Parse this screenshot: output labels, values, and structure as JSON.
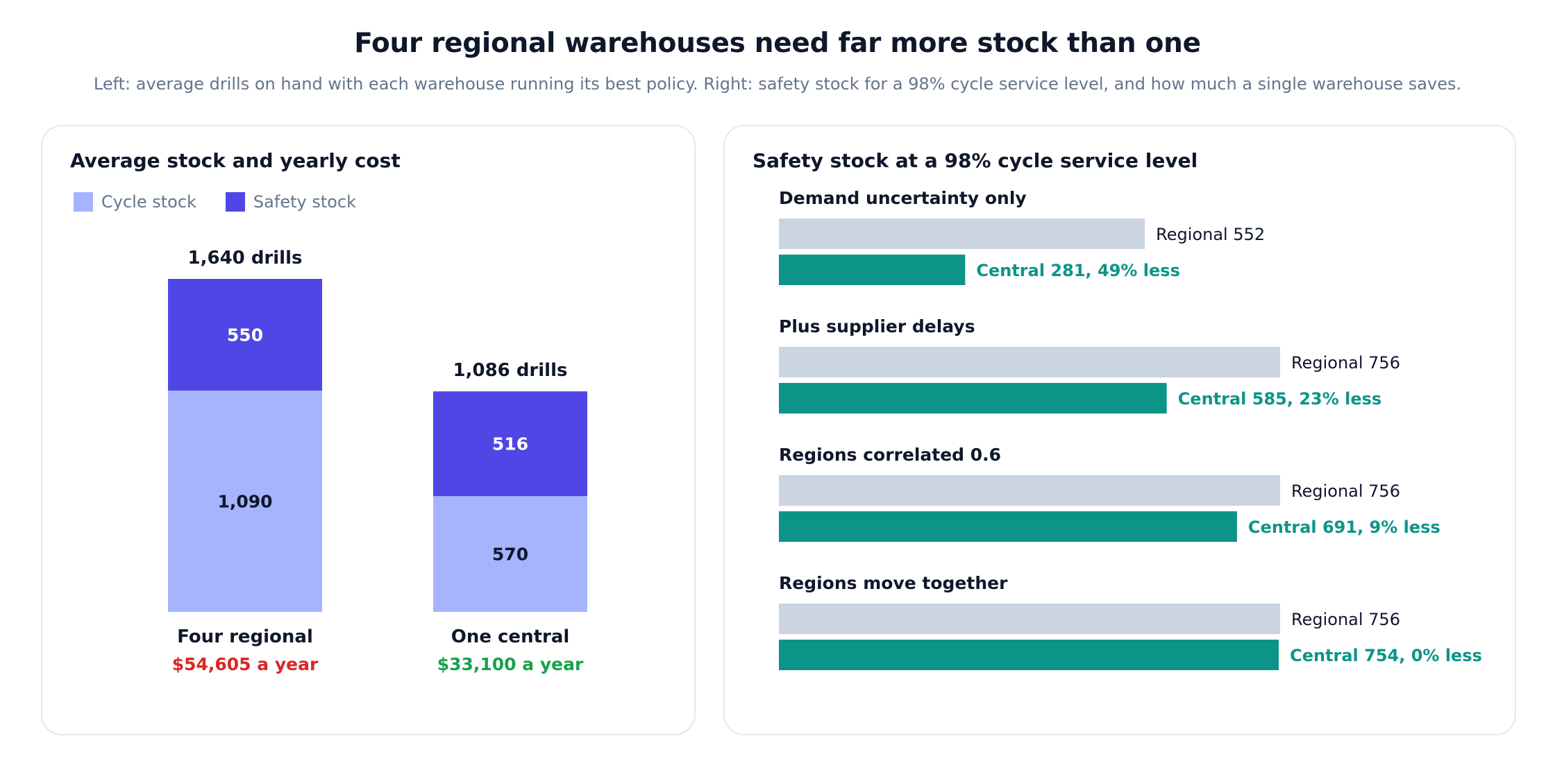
{
  "header": {
    "title": "Four regional warehouses need far more stock than one",
    "subtitle": "Left: average drills on hand with each warehouse running its best policy. Right: safety stock for a 98% cycle service level, and how much a single warehouse saves."
  },
  "colors": {
    "cycle": "#a5b4fc",
    "safety": "#4f46e5",
    "regional_bar": "#cbd5e1",
    "central_bar": "#0d9488",
    "cost_high": "#dc2626",
    "cost_low": "#16a34a"
  },
  "chart_data": [
    {
      "type": "bar",
      "stacked": true,
      "title": "Average stock and yearly cost",
      "legend": [
        "Cycle stock",
        "Safety stock"
      ],
      "legend_position": "top-left",
      "categories": [
        "Four regional",
        "One central"
      ],
      "series": [
        {
          "name": "Cycle stock",
          "values": [
            1090,
            570
          ],
          "labels": [
            "1,090",
            "570"
          ]
        },
        {
          "name": "Safety stock",
          "values": [
            550,
            516
          ],
          "labels": [
            "550",
            "516"
          ]
        }
      ],
      "totals": [
        "1,640 drills",
        "1,086 drills"
      ],
      "costs": [
        "$54,605 a year",
        "$33,100 a year"
      ],
      "ylim": [
        0,
        1640
      ],
      "grid": false
    },
    {
      "type": "bar",
      "orientation": "horizontal",
      "title": "Safety stock at a 98% cycle service level",
      "xlim": [
        0,
        756
      ],
      "grid": false,
      "groups": [
        {
          "name": "Demand uncertainty only",
          "regional": 552,
          "central": 281,
          "regional_label": "Regional 552",
          "central_label": "Central 281, 49% less"
        },
        {
          "name": "Plus supplier delays",
          "regional": 756,
          "central": 585,
          "regional_label": "Regional 756",
          "central_label": "Central 585, 23% less"
        },
        {
          "name": "Regions correlated 0.6",
          "regional": 756,
          "central": 691,
          "regional_label": "Regional 756",
          "central_label": "Central 691, 9% less"
        },
        {
          "name": "Regions move together",
          "regional": 756,
          "central": 754,
          "regional_label": "Regional 756",
          "central_label": "Central 754, 0% less"
        }
      ]
    }
  ]
}
